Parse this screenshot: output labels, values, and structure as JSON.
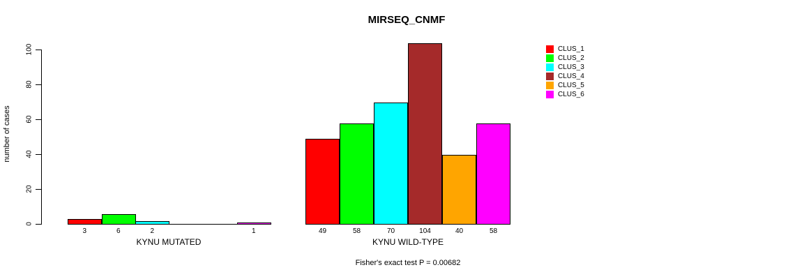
{
  "chart_data": {
    "type": "bar",
    "title": "MIRSEQ_CNMF",
    "ylabel": "number of cases",
    "ylim": [
      0,
      100
    ],
    "yticks": [
      0,
      20,
      40,
      60,
      80,
      100
    ],
    "grid": false,
    "legend_position": "right",
    "footer": "Fisher's exact test P = 0.00682",
    "legend": [
      {
        "name": "CLUS_1",
        "color": "#FF0000"
      },
      {
        "name": "CLUS_2",
        "color": "#00FF00"
      },
      {
        "name": "CLUS_3",
        "color": "#00FFFF"
      },
      {
        "name": "CLUS_4",
        "color": "#A52A2A"
      },
      {
        "name": "CLUS_5",
        "color": "#FFA500"
      },
      {
        "name": "CLUS_6",
        "color": "#FF00FF"
      }
    ],
    "groups": [
      {
        "label": "KYNU MUTATED",
        "values": [
          3,
          6,
          2,
          0,
          0,
          1
        ],
        "bar_labels": [
          "3",
          "6",
          "2",
          "",
          "",
          "1"
        ]
      },
      {
        "label": "KYNU WILD-TYPE",
        "values": [
          49,
          58,
          70,
          104,
          40,
          58
        ],
        "bar_labels": [
          "49",
          "58",
          "70",
          "104",
          "40",
          "58"
        ]
      }
    ]
  }
}
